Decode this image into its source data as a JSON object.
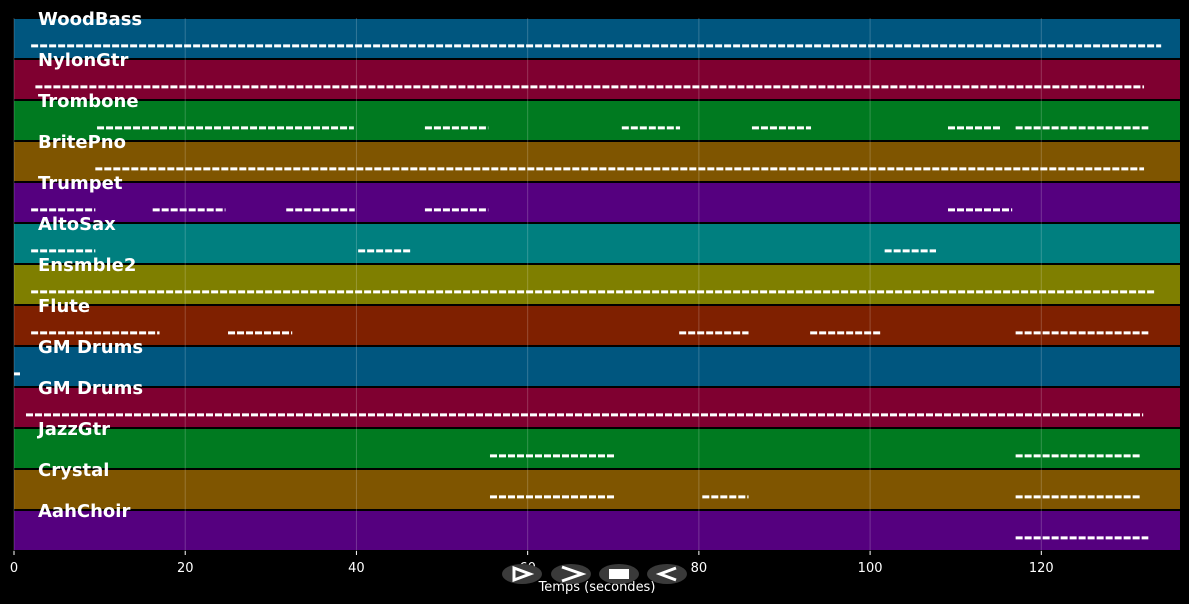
{
  "chart_data": {
    "type": "pianoroll",
    "xlabel": "Temps (secondes)",
    "xlim": [
      0,
      136.2
    ],
    "xticks": [
      0,
      20,
      40,
      60,
      80,
      100,
      120
    ],
    "grid": true,
    "tracks": [
      {
        "name": "WoodBass",
        "color": "#00567f",
        "notes": [
          [
            2,
            134
          ]
        ]
      },
      {
        "name": "NylonGtr",
        "color": "#7f0030",
        "notes": [
          [
            2.5,
            132
          ]
        ]
      },
      {
        "name": "Trombone",
        "color": "#007a20",
        "notes": [
          [
            9.7,
            39.7
          ],
          [
            48,
            55.4
          ],
          [
            71,
            77.8
          ],
          [
            86.2,
            93.1
          ],
          [
            109.1,
            115.4
          ],
          [
            117,
            132.5
          ]
        ]
      },
      {
        "name": "BritePno",
        "color": "#7f5500",
        "notes": [
          [
            9.5,
            132
          ]
        ]
      },
      {
        "name": "Trumpet",
        "color": "#55007f",
        "notes": [
          [
            2,
            9.5
          ],
          [
            16.2,
            24.7
          ],
          [
            31.8,
            39.8
          ],
          [
            48,
            55.4
          ],
          [
            109.1,
            116.6
          ]
        ]
      },
      {
        "name": "AltoSax",
        "color": "#007f7f",
        "notes": [
          [
            2,
            9.5
          ],
          [
            40.2,
            46.4
          ],
          [
            101.7,
            107.7
          ]
        ]
      },
      {
        "name": "Ensmble2",
        "color": "#7f7f00",
        "notes": [
          [
            2,
            133.3
          ]
        ]
      },
      {
        "name": "Flute",
        "color": "#7f2000",
        "notes": [
          [
            2,
            17
          ],
          [
            25,
            32.5
          ],
          [
            77.7,
            85.8
          ],
          [
            93,
            101.2
          ],
          [
            117,
            132.5
          ]
        ]
      },
      {
        "name": "GM Drums",
        "color": "#00567f",
        "notes": [
          [
            0,
            0.7
          ]
        ]
      },
      {
        "name": "GM Drums",
        "color": "#7f0030",
        "notes": [
          [
            1.4,
            131.9
          ]
        ]
      },
      {
        "name": "JazzGtr",
        "color": "#007a20",
        "notes": [
          [
            55.6,
            70.2
          ],
          [
            117,
            131.6
          ]
        ]
      },
      {
        "name": "Crystal",
        "color": "#7f5500",
        "notes": [
          [
            55.6,
            70.2
          ],
          [
            80.4,
            85.8
          ],
          [
            117,
            131.6
          ]
        ]
      },
      {
        "name": "AahChoir",
        "color": "#55007f",
        "notes": [
          [
            117,
            132.5
          ]
        ]
      }
    ]
  }
}
